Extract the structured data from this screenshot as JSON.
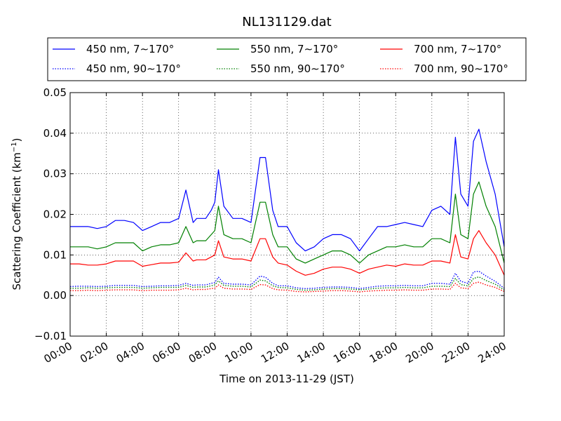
{
  "chart_data": {
    "type": "line",
    "title": "NL131129.dat",
    "xlabel": "Time on 2013-11-29 (JST)",
    "ylabel": "Scattering Coefficient (km",
    "ylabel_exp": "−1",
    "ylabel_close": ")",
    "xlim": [
      0,
      24
    ],
    "ylim": [
      -0.01,
      0.05
    ],
    "x_ticks": [
      0,
      2,
      4,
      6,
      8,
      10,
      12,
      14,
      16,
      18,
      20,
      22,
      24
    ],
    "x_tick_labels": [
      "00:00",
      "02:00",
      "04:00",
      "06:00",
      "08:00",
      "10:00",
      "12:00",
      "14:00",
      "16:00",
      "18:00",
      "20:00",
      "22:00",
      "24:00"
    ],
    "y_ticks": [
      -0.01,
      0.0,
      0.01,
      0.02,
      0.03,
      0.04,
      0.05
    ],
    "y_tick_labels": [
      "−0.01",
      "0.00",
      "0.01",
      "0.02",
      "0.03",
      "0.04",
      "0.05"
    ],
    "grid": true,
    "legend_position": "top",
    "x": [
      0,
      0.5,
      1,
      1.5,
      2,
      2.5,
      3,
      3.5,
      4,
      4.5,
      5,
      5.5,
      6,
      6.4,
      6.8,
      7,
      7.5,
      7.8,
      8,
      8.2,
      8.5,
      9,
      9.5,
      10,
      10.5,
      10.8,
      11.2,
      11.5,
      12,
      12.5,
      13,
      13.5,
      14,
      14.5,
      15,
      15.5,
      16,
      16.5,
      17,
      17.5,
      18,
      18.5,
      19,
      19.5,
      20,
      20.5,
      21,
      21.3,
      21.6,
      22,
      22.3,
      22.6,
      23,
      23.5,
      24
    ],
    "series": [
      {
        "name": "450 nm, 7∼170°",
        "color": "#0000ff",
        "style": "solid",
        "values": [
          0.017,
          0.017,
          0.017,
          0.0165,
          0.017,
          0.0185,
          0.0185,
          0.018,
          0.016,
          0.017,
          0.018,
          0.018,
          0.019,
          0.026,
          0.018,
          0.019,
          0.019,
          0.021,
          0.023,
          0.031,
          0.022,
          0.019,
          0.019,
          0.018,
          0.034,
          0.034,
          0.021,
          0.017,
          0.017,
          0.013,
          0.011,
          0.012,
          0.014,
          0.015,
          0.015,
          0.014,
          0.011,
          0.014,
          0.017,
          0.017,
          0.0175,
          0.018,
          0.0175,
          0.017,
          0.021,
          0.022,
          0.02,
          0.039,
          0.025,
          0.022,
          0.038,
          0.041,
          0.033,
          0.025,
          0.012
        ]
      },
      {
        "name": "550 nm, 7∼170°",
        "color": "#008000",
        "style": "solid",
        "values": [
          0.012,
          0.012,
          0.012,
          0.0115,
          0.012,
          0.013,
          0.013,
          0.013,
          0.011,
          0.012,
          0.0125,
          0.0125,
          0.013,
          0.017,
          0.013,
          0.0135,
          0.0135,
          0.015,
          0.016,
          0.022,
          0.015,
          0.014,
          0.014,
          0.013,
          0.023,
          0.023,
          0.015,
          0.012,
          0.012,
          0.009,
          0.008,
          0.009,
          0.01,
          0.011,
          0.011,
          0.01,
          0.008,
          0.01,
          0.011,
          0.012,
          0.012,
          0.0125,
          0.012,
          0.012,
          0.014,
          0.014,
          0.013,
          0.025,
          0.015,
          0.014,
          0.025,
          0.028,
          0.022,
          0.017,
          0.008
        ]
      },
      {
        "name": "700 nm, 7∼170°",
        "color": "#ff0000",
        "style": "solid",
        "values": [
          0.0078,
          0.0078,
          0.0075,
          0.0075,
          0.0078,
          0.0085,
          0.0085,
          0.0085,
          0.0072,
          0.0076,
          0.008,
          0.008,
          0.0082,
          0.0105,
          0.0085,
          0.0088,
          0.0088,
          0.0095,
          0.01,
          0.0135,
          0.0095,
          0.009,
          0.009,
          0.0085,
          0.014,
          0.014,
          0.0095,
          0.008,
          0.0075,
          0.006,
          0.005,
          0.0055,
          0.0065,
          0.007,
          0.007,
          0.0065,
          0.0055,
          0.0065,
          0.007,
          0.0075,
          0.0072,
          0.0078,
          0.0075,
          0.0075,
          0.0085,
          0.0085,
          0.008,
          0.015,
          0.0095,
          0.009,
          0.014,
          0.016,
          0.013,
          0.01,
          0.005
        ]
      },
      {
        "name": "450 nm, 90∼170°",
        "color": "#0000ff",
        "style": "dotted",
        "values": [
          0.0022,
          0.0023,
          0.0023,
          0.0022,
          0.0023,
          0.0025,
          0.0025,
          0.0025,
          0.0022,
          0.0023,
          0.0024,
          0.0024,
          0.0025,
          0.003,
          0.0025,
          0.0026,
          0.0026,
          0.003,
          0.0032,
          0.0045,
          0.003,
          0.0028,
          0.0028,
          0.0026,
          0.0048,
          0.0045,
          0.003,
          0.0024,
          0.0024,
          0.0019,
          0.0017,
          0.0018,
          0.002,
          0.0021,
          0.0021,
          0.002,
          0.0017,
          0.002,
          0.0023,
          0.0024,
          0.0024,
          0.0025,
          0.0024,
          0.0024,
          0.003,
          0.003,
          0.0028,
          0.0055,
          0.0035,
          0.003,
          0.0058,
          0.006,
          0.0048,
          0.0035,
          0.0018
        ]
      },
      {
        "name": "550 nm, 90∼170°",
        "color": "#008000",
        "style": "dotted",
        "values": [
          0.0018,
          0.0018,
          0.0019,
          0.0018,
          0.0019,
          0.002,
          0.002,
          0.002,
          0.0018,
          0.0019,
          0.002,
          0.002,
          0.002,
          0.0025,
          0.002,
          0.0021,
          0.0021,
          0.0024,
          0.0026,
          0.0036,
          0.0025,
          0.0023,
          0.0023,
          0.0021,
          0.0038,
          0.0036,
          0.0024,
          0.002,
          0.0019,
          0.0015,
          0.0013,
          0.0014,
          0.0016,
          0.0017,
          0.0017,
          0.0016,
          0.0014,
          0.0016,
          0.0018,
          0.0019,
          0.0019,
          0.002,
          0.0019,
          0.0019,
          0.0023,
          0.0023,
          0.0022,
          0.0042,
          0.0027,
          0.0024,
          0.0042,
          0.0046,
          0.0037,
          0.0028,
          0.0014
        ]
      },
      {
        "name": "700 nm, 90∼170°",
        "color": "#ff0000",
        "style": "dotted",
        "values": [
          0.0012,
          0.0012,
          0.0013,
          0.0012,
          0.0013,
          0.0014,
          0.0014,
          0.0014,
          0.0012,
          0.0013,
          0.0013,
          0.0013,
          0.0014,
          0.0018,
          0.0014,
          0.0015,
          0.0015,
          0.0017,
          0.0018,
          0.0026,
          0.0018,
          0.0016,
          0.0016,
          0.0015,
          0.0027,
          0.0026,
          0.0017,
          0.0014,
          0.0013,
          0.001,
          0.0009,
          0.001,
          0.0011,
          0.0012,
          0.0012,
          0.0011,
          0.0009,
          0.0011,
          0.0012,
          0.0013,
          0.0013,
          0.0014,
          0.0013,
          0.0013,
          0.0016,
          0.0016,
          0.0015,
          0.003,
          0.0019,
          0.0017,
          0.003,
          0.0033,
          0.0026,
          0.002,
          0.001
        ]
      }
    ],
    "legend_order": [
      0,
      1,
      2,
      3,
      4,
      5
    ]
  }
}
